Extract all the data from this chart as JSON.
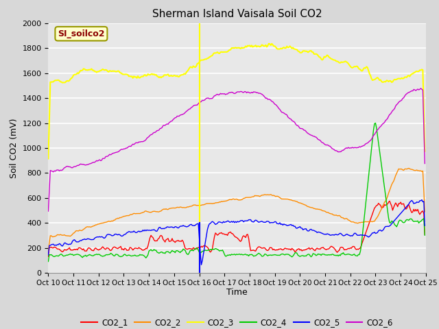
{
  "title": "Sherman Island Vaisala Soil CO2",
  "ylabel": "Soil CO2 (mV)",
  "xlabel": "Time",
  "watermark": "SI_soilco2",
  "x_tick_labels": [
    "Oct 10",
    "Oct 11",
    "Oct 12",
    "Oct 13",
    "Oct 14",
    "Oct 15",
    "Oct 16",
    "Oct 17",
    "Oct 18",
    "Oct 19",
    "Oct 20",
    "Oct 21",
    "Oct 22",
    "Oct 23",
    "Oct 24",
    "Oct 25"
  ],
  "ylim": [
    0,
    2000
  ],
  "xlim": [
    0,
    375
  ],
  "colors": {
    "CO2_1": "#ff0000",
    "CO2_2": "#ff8c00",
    "CO2_3": "#ffff00",
    "CO2_4": "#00cc00",
    "CO2_5": "#0000ff",
    "CO2_6": "#cc00cc"
  },
  "vline_yellow_x": 150,
  "vline_blue_x": 150,
  "vline_blue_ymin": 0,
  "vline_blue_ymax": 400,
  "legend_entries": [
    "CO2_1",
    "CO2_2",
    "CO2_3",
    "CO2_4",
    "CO2_5",
    "CO2_6"
  ]
}
